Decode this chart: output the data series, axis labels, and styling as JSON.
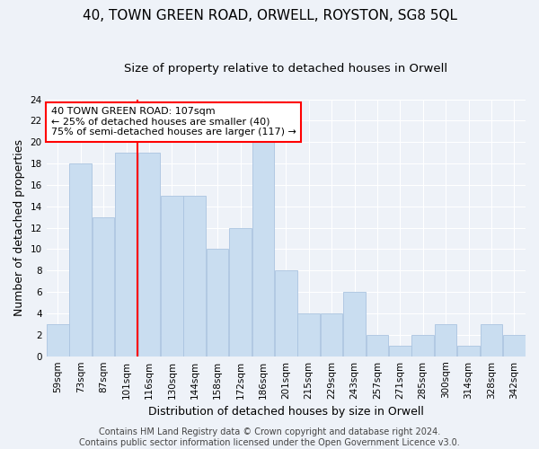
{
  "title1": "40, TOWN GREEN ROAD, ORWELL, ROYSTON, SG8 5QL",
  "title2": "Size of property relative to detached houses in Orwell",
  "xlabel": "Distribution of detached houses by size in Orwell",
  "ylabel": "Number of detached properties",
  "categories": [
    "59sqm",
    "73sqm",
    "87sqm",
    "101sqm",
    "116sqm",
    "130sqm",
    "144sqm",
    "158sqm",
    "172sqm",
    "186sqm",
    "201sqm",
    "215sqm",
    "229sqm",
    "243sqm",
    "257sqm",
    "271sqm",
    "285sqm",
    "300sqm",
    "314sqm",
    "328sqm",
    "342sqm"
  ],
  "values": [
    3,
    18,
    13,
    19,
    19,
    15,
    15,
    10,
    12,
    20,
    8,
    4,
    4,
    6,
    2,
    1,
    2,
    3,
    1,
    3,
    2
  ],
  "bar_color": "#c9ddf0",
  "bar_edge_color": "#aac4e0",
  "red_line_x": 3.5,
  "annotation_text": "40 TOWN GREEN ROAD: 107sqm\n← 25% of detached houses are smaller (40)\n75% of semi-detached houses are larger (117) →",
  "annotation_box_color": "white",
  "annotation_box_edge": "red",
  "ylim": [
    0,
    24
  ],
  "yticks": [
    0,
    2,
    4,
    6,
    8,
    10,
    12,
    14,
    16,
    18,
    20,
    22,
    24
  ],
  "footer1": "Contains HM Land Registry data © Crown copyright and database right 2024.",
  "footer2": "Contains public sector information licensed under the Open Government Licence v3.0.",
  "background_color": "#eef2f8",
  "grid_color": "#ffffff",
  "title1_fontsize": 11,
  "title2_fontsize": 9.5,
  "xlabel_fontsize": 9,
  "ylabel_fontsize": 9,
  "tick_fontsize": 7.5,
  "annotation_fontsize": 8,
  "footer_fontsize": 7
}
